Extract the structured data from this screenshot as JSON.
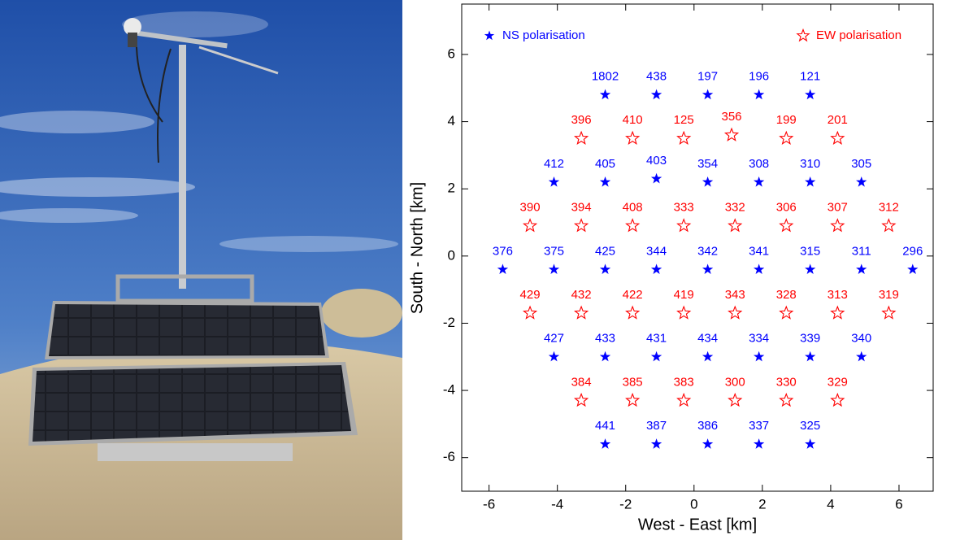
{
  "chart_data": {
    "type": "scatter",
    "xlabel": "West - East [km]",
    "ylabel": "South - North [km]",
    "xlim": [
      -6.8,
      7.0
    ],
    "ylim": [
      -7.0,
      7.5
    ],
    "xticks": [
      -6,
      -4,
      -2,
      0,
      2,
      4,
      6
    ],
    "yticks": [
      -6,
      -4,
      -2,
      0,
      2,
      4,
      6
    ],
    "series": [
      {
        "name": "NS polarisation",
        "color": "#0000ff",
        "marker": "filled-star",
        "x": [
          -2.6,
          -1.1,
          0.4,
          1.9,
          3.4,
          -4.1,
          -2.6,
          -1.1,
          0.4,
          1.9,
          3.4,
          4.9,
          -5.6,
          -4.1,
          -2.6,
          -1.1,
          0.4,
          1.9,
          3.4,
          4.9,
          6.4,
          -4.1,
          -2.6,
          -1.1,
          0.4,
          1.9,
          3.4,
          4.9,
          -2.6,
          -1.1,
          0.4,
          1.9,
          3.4
        ],
        "y": [
          4.8,
          4.8,
          4.8,
          4.8,
          4.8,
          2.2,
          2.2,
          2.3,
          2.2,
          2.2,
          2.2,
          2.2,
          -0.4,
          -0.4,
          -0.4,
          -0.4,
          -0.4,
          -0.4,
          -0.4,
          -0.4,
          -0.4,
          -3.0,
          -3.0,
          -3.0,
          -3.0,
          -3.0,
          -3.0,
          -3.0,
          -5.6,
          -5.6,
          -5.6,
          -5.6,
          -5.6
        ],
        "labels": [
          "1802",
          "438",
          "197",
          "196",
          "121",
          "412",
          "405",
          "403",
          "354",
          "308",
          "310",
          "305",
          "376",
          "375",
          "425",
          "344",
          "342",
          "341",
          "315",
          "311",
          "296",
          "427",
          "433",
          "431",
          "434",
          "334",
          "339",
          "340",
          "441",
          "387",
          "386",
          "337",
          "325"
        ]
      },
      {
        "name": "EW polarisation",
        "color": "#ff0000",
        "marker": "open-star",
        "x": [
          -3.3,
          -1.8,
          -0.3,
          1.1,
          2.7,
          4.2,
          -4.8,
          -3.3,
          -1.8,
          -0.3,
          1.2,
          2.7,
          4.2,
          5.7,
          -4.8,
          -3.3,
          -1.8,
          -0.3,
          1.2,
          2.7,
          4.2,
          5.7,
          -3.3,
          -1.8,
          -0.3,
          1.2,
          2.7,
          4.2
        ],
        "y": [
          3.5,
          3.5,
          3.5,
          3.6,
          3.5,
          3.5,
          0.9,
          0.9,
          0.9,
          0.9,
          0.9,
          0.9,
          0.9,
          0.9,
          -1.7,
          -1.7,
          -1.7,
          -1.7,
          -1.7,
          -1.7,
          -1.7,
          -1.7,
          -4.3,
          -4.3,
          -4.3,
          -4.3,
          -4.3,
          -4.3
        ],
        "labels": [
          "396",
          "410",
          "125",
          "356",
          "199",
          "201",
          "390",
          "394",
          "408",
          "333",
          "332",
          "306",
          "307",
          "312",
          "429",
          "432",
          "422",
          "419",
          "343",
          "328",
          "313",
          "319",
          "384",
          "385",
          "383",
          "300",
          "330",
          "329"
        ]
      }
    ]
  }
}
